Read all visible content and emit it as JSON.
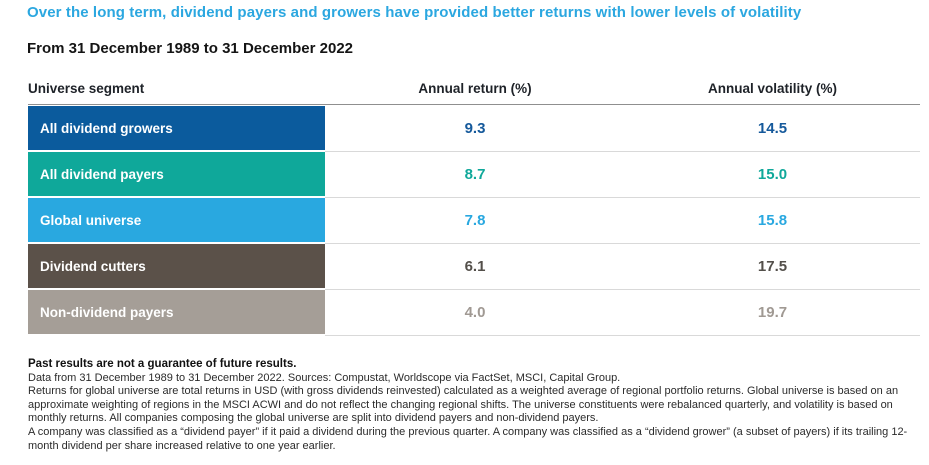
{
  "page": {
    "title": "Over the long term, dividend payers and growers have provided better returns with lower levels of volatility",
    "subtitle": "From 31 December 1989 to 31 December 2022"
  },
  "colors": {
    "title_blue": "#2BA7E0",
    "header_underline": "#8F8F8F",
    "row_separator": "#D9D9D9"
  },
  "chart_data": {
    "type": "table",
    "title": "Over the long term, dividend payers and growers have provided better returns with lower levels of volatility",
    "subtitle": "From 31 December 1989 to 31 December 2022",
    "columns": [
      "Universe segment",
      "Annual return (%)",
      "Annual volatility (%)"
    ],
    "rows": [
      {
        "segment": "All dividend growers",
        "annual_return": "9.3",
        "annual_volatility": "14.5",
        "color": "#0B5B9D",
        "value_color": "#15599B"
      },
      {
        "segment": "All dividend payers",
        "annual_return": "8.7",
        "annual_volatility": "15.0",
        "color": "#0FA89A",
        "value_color": "#0FA89A"
      },
      {
        "segment": "Global universe",
        "annual_return": "7.8",
        "annual_volatility": "15.8",
        "color": "#29A8E0",
        "value_color": "#29A8E0"
      },
      {
        "segment": "Dividend cutters",
        "annual_return": "6.1",
        "annual_volatility": "17.5",
        "color": "#5B5149",
        "value_color": "#534F4A"
      },
      {
        "segment": "Non-dividend payers",
        "annual_return": "4.0",
        "annual_volatility": "19.7",
        "color": "#A59E97",
        "value_color": "#A09993"
      }
    ]
  },
  "footnotes": {
    "disclaimer": "Past results are not a guarantee of future results.",
    "sources": "Data from 31 December 1989 to 31 December 2022. Sources: Compustat, Worldscope via FactSet, MSCI, Capital Group.",
    "methodology": "Returns for global universe are total returns in USD (with gross dividends reinvested) calculated as a weighted average of regional portfolio returns. Global universe is based on an approximate weighting of regions in the MSCI ACWI and do not reflect the changing regional shifts. The universe constituents were rebalanced quarterly, and volatility is based on monthly returns. All companies composing the global universe are split into dividend payers and non-dividend payers.",
    "definitions": "A company was classified as a “dividend payer” if it paid a dividend during the previous quarter. A company was classified as a “dividend grower” (a subset of payers) if its trailing 12-month dividend per share increased relative to one year earlier."
  }
}
